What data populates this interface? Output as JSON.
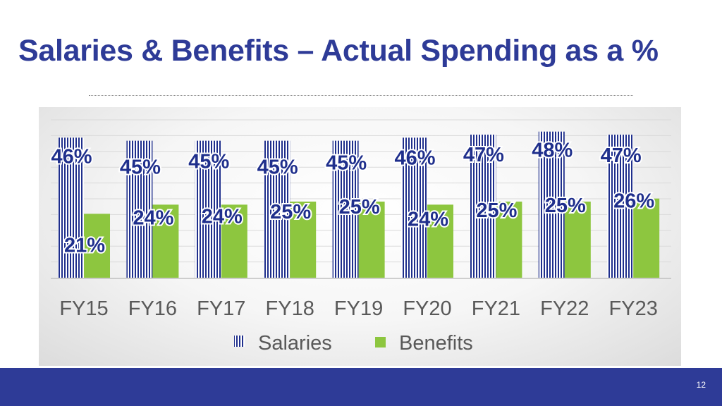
{
  "slide": {
    "title": "Salaries & Benefits – Actual Spending as a %",
    "page_number": "12"
  },
  "colors": {
    "title": "#2e3b97",
    "footer": "#2e3b97",
    "salaries_stripe": "#1f2f8c",
    "benefits": "#8dc63f"
  },
  "chart_data": {
    "type": "bar",
    "title": "",
    "xlabel": "",
    "ylabel": "",
    "ylim": [
      0,
      50
    ],
    "grid": true,
    "legend_position": "bottom",
    "categories": [
      "FY15",
      "FY16",
      "FY17",
      "FY18",
      "FY19",
      "FY20",
      "FY21",
      "FY22",
      "FY23"
    ],
    "series": [
      {
        "name": "Salaries",
        "values": [
          46,
          45,
          45,
          45,
          45,
          46,
          47,
          48,
          47
        ],
        "labels": [
          "46%",
          "45%",
          "45%",
          "45%",
          "45%",
          "46%",
          "47%",
          "48%",
          "47%"
        ],
        "pattern": "vertical-stripes"
      },
      {
        "name": "Benefits",
        "values": [
          21,
          24,
          24,
          25,
          25,
          24,
          25,
          25,
          26
        ],
        "labels": [
          "21%",
          "24%",
          "24%",
          "25%",
          "25%",
          "24%",
          "25%",
          "25%",
          "26%"
        ],
        "pattern": "solid"
      }
    ]
  }
}
